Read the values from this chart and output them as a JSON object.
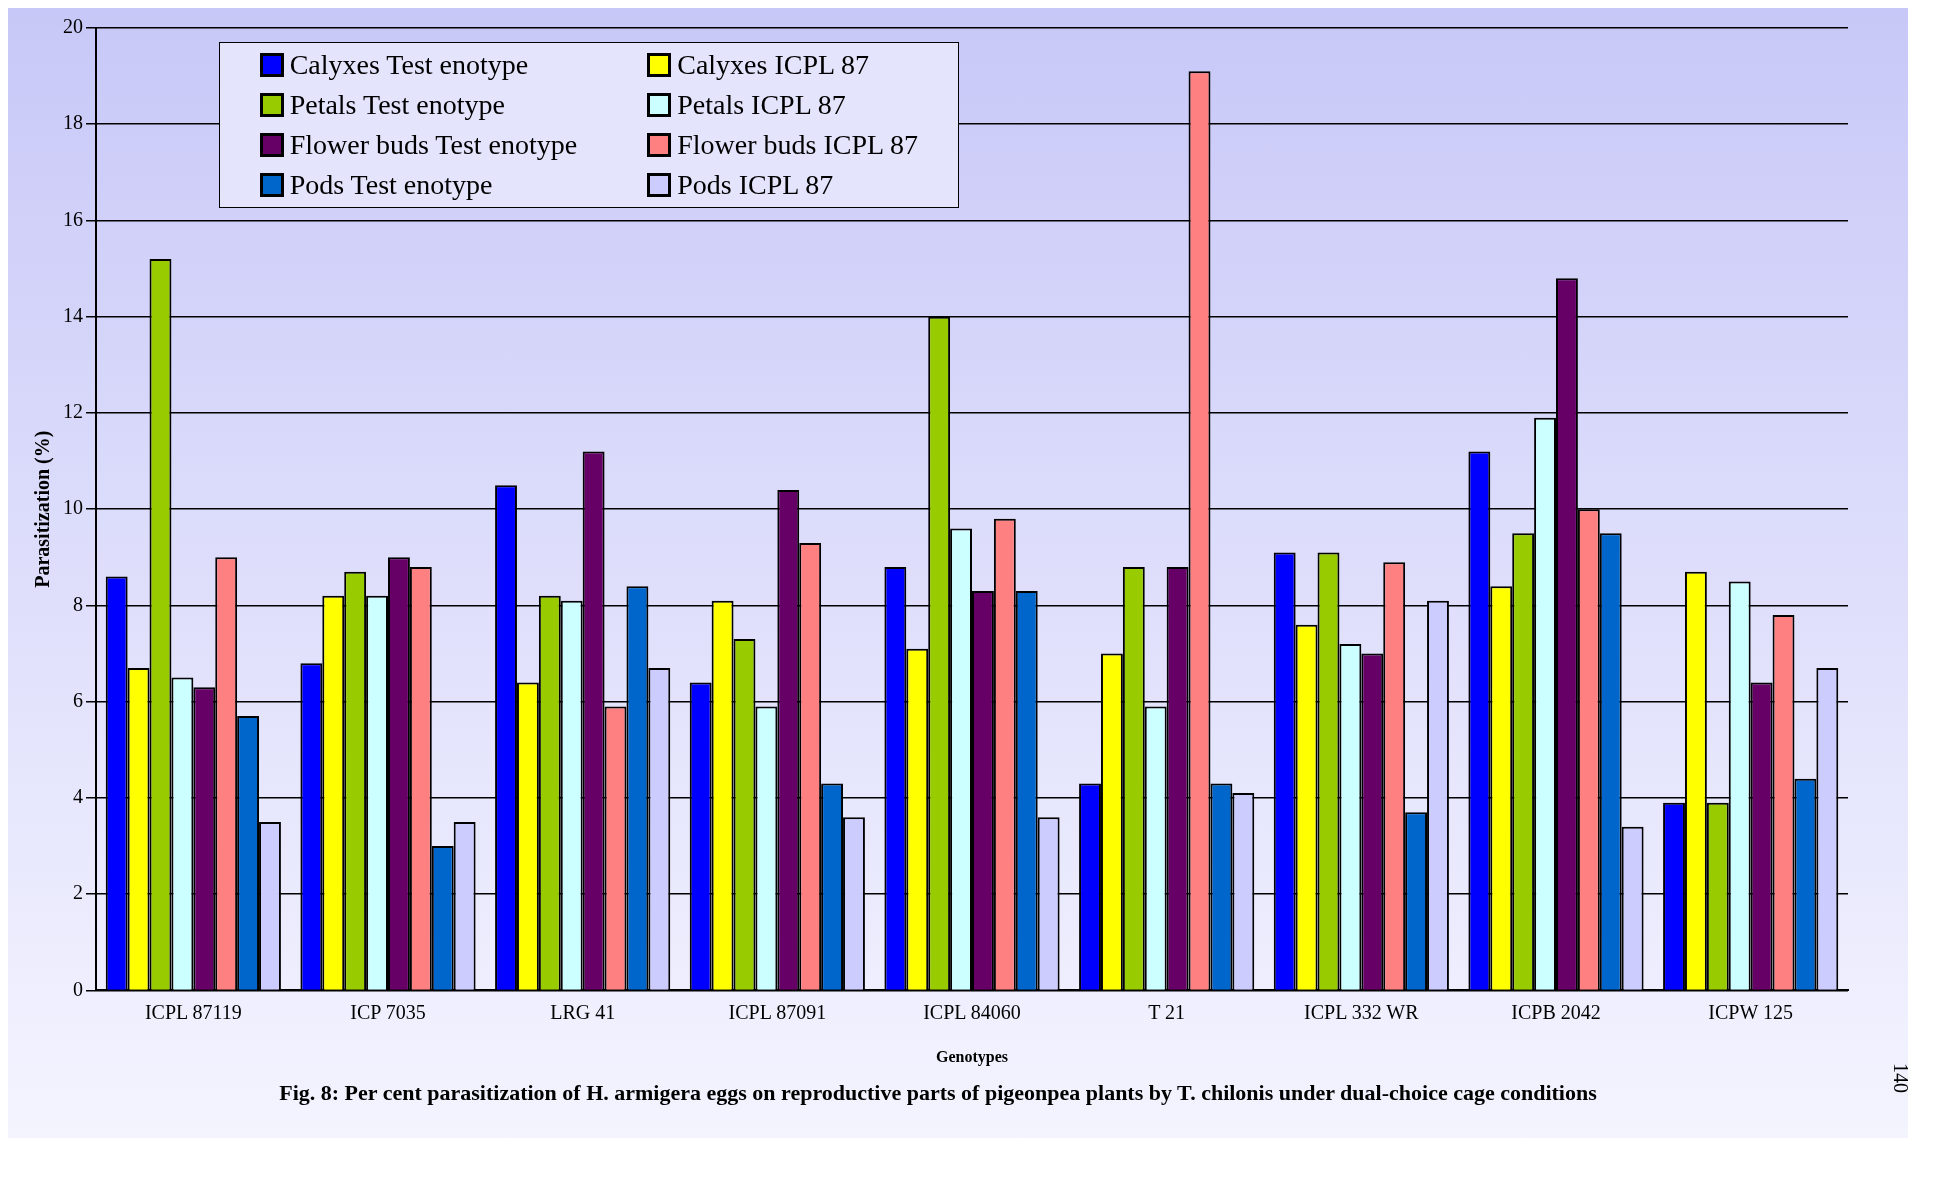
{
  "chart_data": {
    "type": "bar",
    "title": "Fig. 8: Per cent parasitization of H. armigera eggs on reproductive parts of pigeonpea plants by T. chilonis under dual-choice cage conditions",
    "xlabel": "Genotypes",
    "ylabel": "Parasitization (%)",
    "annotations": [
      "140"
    ],
    "categories": [
      "ICPL 87119",
      "ICP 7035",
      "LRG 41",
      "ICPL 87091",
      "ICPL 84060",
      "T 21",
      "ICPL 332 WR",
      "ICPB 2042",
      "ICPW 125"
    ],
    "series": [
      {
        "name": "Calyxes Test enotype",
        "color": "#0000ff",
        "values": [
          8.6,
          6.8,
          10.5,
          6.4,
          8.8,
          4.3,
          9.1,
          11.2,
          3.9
        ]
      },
      {
        "name": "Calyxes ICPL 87",
        "color": "#ffff00",
        "values": [
          6.7,
          8.2,
          6.4,
          8.1,
          7.1,
          7.0,
          7.6,
          8.4,
          8.7
        ]
      },
      {
        "name": "Petals Test enotype",
        "color": "#99cc00",
        "values": [
          15.2,
          8.7,
          8.2,
          7.3,
          14.0,
          8.8,
          9.1,
          9.5,
          3.9
        ]
      },
      {
        "name": "Petals ICPL 87",
        "color": "#ccffff",
        "values": [
          6.5,
          8.2,
          8.1,
          5.9,
          9.6,
          5.9,
          7.2,
          11.9,
          8.5
        ]
      },
      {
        "name": "Flower buds Test enotype",
        "color": "#660066",
        "values": [
          6.3,
          9.0,
          11.2,
          10.4,
          8.3,
          8.8,
          7.0,
          14.8,
          6.4
        ]
      },
      {
        "name": "Flower buds ICPL 87",
        "color": "#ff8080",
        "values": [
          9.0,
          8.8,
          5.9,
          9.3,
          9.8,
          19.1,
          8.9,
          10.0,
          7.8
        ]
      },
      {
        "name": "Pods Test enotype",
        "color": "#0066cc",
        "values": [
          5.7,
          3.0,
          8.4,
          4.3,
          8.3,
          4.3,
          3.7,
          9.5,
          4.4
        ]
      },
      {
        "name": "Pods ICPL 87",
        "color": "#ccccff",
        "values": [
          3.5,
          3.5,
          6.7,
          3.6,
          3.6,
          4.1,
          8.1,
          3.4,
          6.7
        ]
      }
    ],
    "ylim": [
      0,
      20
    ],
    "yticks": [
      0,
      2,
      4,
      6,
      8,
      10,
      12,
      14,
      16,
      18,
      20
    ],
    "grid": "y",
    "legend": "top left"
  }
}
